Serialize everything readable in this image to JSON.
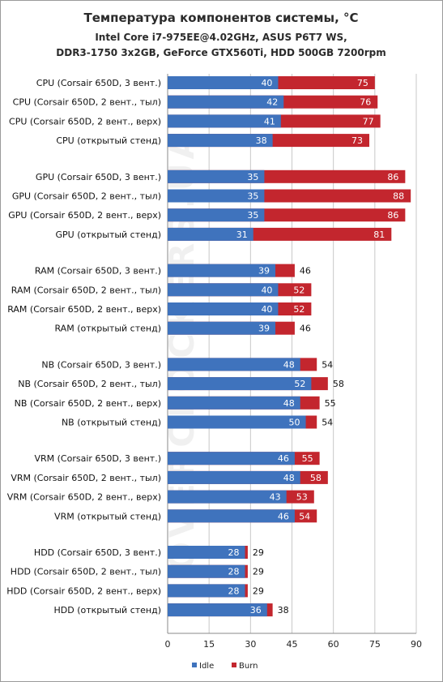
{
  "chart_data": {
    "type": "bar",
    "stacked": "overlay",
    "title": "Температура компонентов системы, °С",
    "subtitle": [
      "Intel Core i7-975EE@4.02GHz,  ASUS P6T7 WS,",
      "DDR3-1750 3x2GB,  GeForce GTX560Ti, HDD 500GB 7200rpm"
    ],
    "xlim": [
      0,
      90
    ],
    "xticks": [
      0,
      15,
      30,
      45,
      60,
      75,
      90
    ],
    "grid": true,
    "legend": "bottom",
    "watermark": "OVERCLOCKERS.UA",
    "colors": {
      "idle": "#3f73bd",
      "burn": "#c3262e"
    },
    "series": [
      {
        "name": "Idle",
        "key": "idle"
      },
      {
        "name": "Burn",
        "key": "burn"
      }
    ],
    "groups": [
      {
        "items": [
          {
            "label": "CPU (Corsair 650D, 3 вент.)",
            "idle": 40,
            "burn": 75
          },
          {
            "label": "CPU (Corsair 650D, 2 вент., тыл)",
            "idle": 42,
            "burn": 76
          },
          {
            "label": "CPU (Corsair 650D, 2 вент., верх)",
            "idle": 41,
            "burn": 77
          },
          {
            "label": "CPU (открытый стенд)",
            "idle": 38,
            "burn": 73
          }
        ]
      },
      {
        "items": [
          {
            "label": "GPU (Corsair 650D, 3 вент.)",
            "idle": 35,
            "burn": 86
          },
          {
            "label": "GPU (Corsair 650D, 2 вент., тыл)",
            "idle": 35,
            "burn": 88
          },
          {
            "label": "GPU (Corsair 650D, 2 вент., верх)",
            "idle": 35,
            "burn": 86
          },
          {
            "label": "GPU (открытый стенд)",
            "idle": 31,
            "burn": 81
          }
        ]
      },
      {
        "items": [
          {
            "label": "RAM (Corsair 650D, 3 вент.)",
            "idle": 39,
            "burn": 46
          },
          {
            "label": "RAM (Corsair 650D, 2 вент., тыл)",
            "idle": 40,
            "burn": 52
          },
          {
            "label": "RAM (Corsair 650D, 2 вент., верх)",
            "idle": 40,
            "burn": 52
          },
          {
            "label": "RAM (открытый стенд)",
            "idle": 39,
            "burn": 46
          }
        ]
      },
      {
        "items": [
          {
            "label": "NB (Corsair 650D, 3 вент.)",
            "idle": 48,
            "burn": 54
          },
          {
            "label": "NB (Corsair 650D, 2 вент., тыл)",
            "idle": 52,
            "burn": 58
          },
          {
            "label": "NB (Corsair 650D, 2 вент., верх)",
            "idle": 48,
            "burn": 55
          },
          {
            "label": "NB (открытый стенд)",
            "idle": 50,
            "burn": 54
          }
        ]
      },
      {
        "items": [
          {
            "label": "VRM (Corsair 650D, 3 вент.)",
            "idle": 46,
            "burn": 55
          },
          {
            "label": "VRM (Corsair 650D, 2 вент., тыл)",
            "idle": 48,
            "burn": 58
          },
          {
            "label": "VRM (Corsair 650D, 2 вент., верх)",
            "idle": 43,
            "burn": 53
          },
          {
            "label": "VRM (открытый стенд)",
            "idle": 46,
            "burn": 54
          }
        ]
      },
      {
        "items": [
          {
            "label": "HDD (Corsair 650D, 3 вент.)",
            "idle": 28,
            "burn": 29
          },
          {
            "label": "HDD (Corsair 650D, 2 вент., тыл)",
            "idle": 28,
            "burn": 29
          },
          {
            "label": "HDD (Corsair 650D, 2 вент., верх)",
            "idle": 28,
            "burn": 29
          },
          {
            "label": "HDD (открытый стенд)",
            "idle": 36,
            "burn": 38
          }
        ]
      }
    ]
  }
}
